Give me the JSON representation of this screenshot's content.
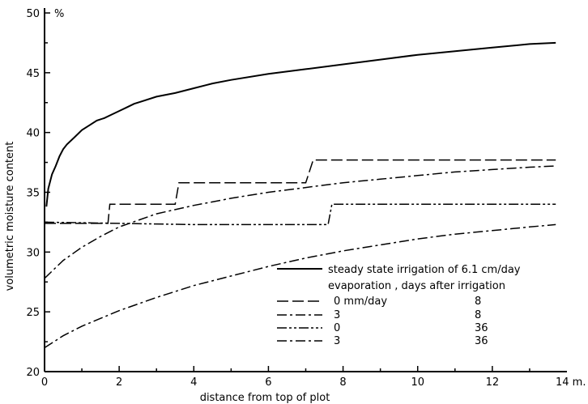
{
  "chart_data": {
    "type": "line",
    "xlabel": "distance  from  top  of  plot",
    "ylabel": "volumetric  moisture  content",
    "y_unit": "%",
    "x_unit": "14 m.",
    "xlim": [
      0,
      14
    ],
    "ylim": [
      20,
      50
    ],
    "x_ticks": [
      0,
      2,
      4,
      6,
      8,
      10,
      12
    ],
    "y_ticks": [
      20,
      25,
      30,
      35,
      40,
      45,
      50
    ],
    "grid": false,
    "legend_placement": "lower-right",
    "legend": {
      "main_entry": "steady state irrigation of 6.1 cm/day",
      "header": "evaporation ,  days after irrigation",
      "rows": [
        {
          "evaporation": "0 mm/day",
          "days": "8"
        },
        {
          "evaporation": "3",
          "days": "8"
        },
        {
          "evaporation": "0",
          "days": "36"
        },
        {
          "evaporation": "3",
          "days": "36"
        }
      ]
    },
    "series": [
      {
        "style": "solid",
        "x": [
          0.05,
          0.1,
          0.2,
          0.3,
          0.4,
          0.5,
          0.6,
          0.8,
          1.0,
          1.2,
          1.4,
          1.6,
          1.8,
          2.0,
          2.2,
          2.4,
          2.6,
          3.0,
          3.5,
          4.0,
          4.5,
          5.0,
          6.0,
          7.0,
          8.0,
          9.0,
          10.0,
          11.0,
          12.0,
          13.0,
          13.7
        ],
        "y": [
          33.8,
          35.3,
          36.5,
          37.2,
          38.0,
          38.6,
          39.0,
          39.6,
          40.2,
          40.6,
          41.0,
          41.2,
          41.5,
          41.8,
          42.1,
          42.4,
          42.6,
          43.0,
          43.3,
          43.7,
          44.1,
          44.4,
          44.9,
          45.3,
          45.7,
          46.1,
          46.5,
          46.8,
          47.1,
          47.4,
          47.5
        ]
      },
      {
        "style": "long-dash",
        "x": [
          0,
          1.7,
          1.75,
          3.5,
          3.6,
          7.0,
          7.2,
          13.7
        ],
        "y": [
          32.4,
          32.4,
          34.0,
          34.0,
          35.8,
          35.8,
          37.7,
          37.7
        ]
      },
      {
        "style": "dash-dot",
        "x": [
          0,
          0.5,
          1.0,
          1.5,
          2.0,
          3.0,
          4.0,
          5.0,
          6.0,
          7.0,
          8.0,
          9.0,
          10.0,
          11.0,
          12.0,
          13.0,
          13.7
        ],
        "y": [
          27.8,
          29.3,
          30.4,
          31.3,
          32.1,
          33.2,
          33.9,
          34.5,
          35.0,
          35.4,
          35.8,
          36.1,
          36.4,
          36.7,
          36.9,
          37.1,
          37.2
        ]
      },
      {
        "style": "dash-dot-dot",
        "x": [
          0,
          2.0,
          4.0,
          6.0,
          7.6,
          7.7,
          10.0,
          13.7
        ],
        "y": [
          32.5,
          32.4,
          32.3,
          32.3,
          32.3,
          34.0,
          34.0,
          34.0
        ]
      },
      {
        "style": "dash-dot",
        "x": [
          0,
          0.5,
          1.0,
          2.0,
          3.0,
          4.0,
          5.0,
          6.0,
          7.0,
          8.0,
          9.0,
          10.0,
          11.0,
          12.0,
          13.0,
          13.7
        ],
        "y": [
          22.0,
          23.0,
          23.8,
          25.1,
          26.2,
          27.2,
          28.0,
          28.8,
          29.5,
          30.1,
          30.6,
          31.1,
          31.5,
          31.8,
          32.1,
          32.3
        ]
      }
    ]
  }
}
